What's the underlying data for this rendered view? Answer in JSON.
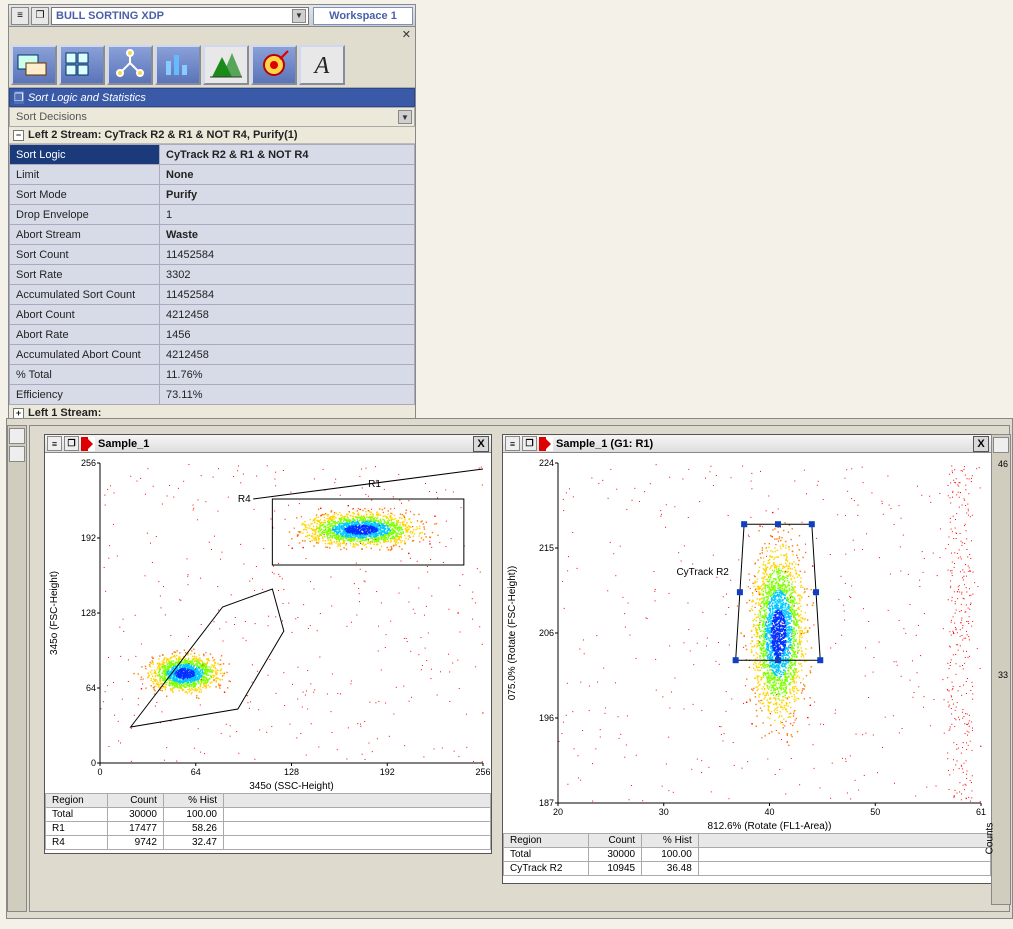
{
  "header": {
    "workspace_combo": "BULL SORTING XDP",
    "workspace_label": "Workspace 1"
  },
  "toolbar_icons": [
    "ws-icon",
    "grid-icon",
    "tree-icon",
    "bars-icon",
    "histogram-icon",
    "target-icon",
    "a-icon"
  ],
  "stats_panel": {
    "title": "Sort Logic and Statistics",
    "dropdown": "Sort Decisions",
    "stream_header": "Left 2 Stream: CyTrack R2 & R1 & NOT R4, Purify(1)",
    "rows": [
      {
        "k": "Sort Logic",
        "v": "CyTrack R2 & R1 & NOT R4",
        "sel": true,
        "bold": true
      },
      {
        "k": "Limit",
        "v": "None",
        "bold": true
      },
      {
        "k": "Sort Mode",
        "v": "Purify",
        "bold": true
      },
      {
        "k": "Drop Envelope",
        "v": "1"
      },
      {
        "k": "Abort Stream",
        "v": "Waste",
        "bold": true
      },
      {
        "k": "Sort Count",
        "v": "11452584"
      },
      {
        "k": "Sort Rate",
        "v": "3302"
      },
      {
        "k": "Accumulated Sort Count",
        "v": "11452584"
      },
      {
        "k": "Abort Count",
        "v": "4212458"
      },
      {
        "k": "Abort Rate",
        "v": "1456"
      },
      {
        "k": "Accumulated Abort Count",
        "v": "4212458"
      },
      {
        "k": "% Total",
        "v": "11.76%"
      },
      {
        "k": "Efficiency",
        "v": "73.11%"
      }
    ],
    "footer_stream": "Left 1 Stream:"
  },
  "plot_left": {
    "title": "Sample_1",
    "y_label": "345o (FSC-Height)",
    "x_label": "345o (SSC-Height)",
    "y_ticks": [
      "0",
      "64",
      "128",
      "192",
      "256"
    ],
    "x_ticks": [
      "0",
      "64",
      "128",
      "192",
      "256"
    ],
    "gate_labels": {
      "r4": "R4",
      "r1": "R1"
    },
    "region_table": {
      "cols": [
        "Region",
        "Count",
        "% Hist"
      ],
      "rows": [
        [
          "Total",
          "30000",
          "100.00"
        ],
        [
          "R1",
          "17477",
          "58.26"
        ],
        [
          "R4",
          "9742",
          "32.47"
        ]
      ]
    },
    "density_palette": [
      "#ff0000",
      "#ff7a00",
      "#ffd400",
      "#7fff00",
      "#00c8ff",
      "#0030ff"
    ],
    "cluster_a": {
      "cx_pct": 22,
      "cy_pct": 70,
      "rx_pct": 15,
      "ry_pct": 10
    },
    "cluster_b": {
      "cx_pct": 68,
      "cy_pct": 22,
      "rx_pct": 24,
      "ry_pct": 9
    }
  },
  "plot_right": {
    "title": "Sample_1  (G1: R1)",
    "y_label": "075.0% (Rotate (FSC-Height))",
    "x_label": "812.6% (Rotate (FL1-Area))",
    "y_ticks": [
      "187",
      "196",
      "206",
      "215",
      "224"
    ],
    "x_ticks": [
      "20",
      "30",
      "40",
      "50",
      "61"
    ],
    "rt_y_tick_top": "46",
    "rt_y_tick_mid": "33",
    "rt_label": "Counts",
    "gate_label": "CyTrack R2",
    "region_table": {
      "cols": [
        "Region",
        "Count",
        "% Hist"
      ],
      "rows": [
        [
          "Total",
          "30000",
          "100.00"
        ],
        [
          "CyTrack R2",
          "10945",
          "36.48"
        ]
      ]
    },
    "density_palette": [
      "#ff0000",
      "#ff7a00",
      "#ffd400",
      "#7fff00",
      "#00c8ff",
      "#0030ff"
    ],
    "cluster": {
      "cx_pct": 52,
      "cy_pct": 50,
      "rx_pct": 10,
      "ry_pct": 40
    }
  },
  "colors": {
    "panel_bg": "#d7d4c1",
    "cell_bg": "#d7dbe7",
    "sel_bg": "#1a3a7a",
    "plot_bg": "#ffffff",
    "tool_btn": "#5a74b8"
  }
}
